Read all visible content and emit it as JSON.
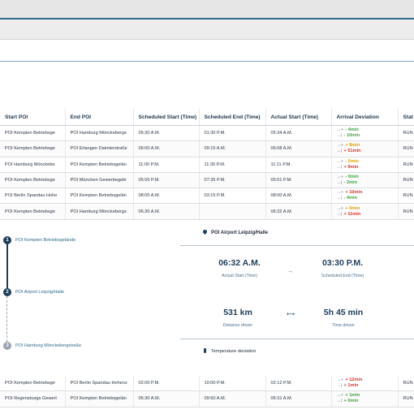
{
  "columns": [
    "Start POI",
    "End POI",
    "Scheduled Start (Time)",
    "Scheduled End (Time)",
    "Actual Start (Time)",
    "Arrival Deviation",
    "Stat"
  ],
  "rows": [
    {
      "start_poi": "POI Kempten Betriebsge",
      "end_poi": "POI Hamburg Mönckebergs",
      "sched_start": "05:30 A.M.",
      "sched_end": "01:30 P.M.",
      "actual_start": "05:34 A.M.",
      "dev1": "- 4min",
      "dev1_color": "early",
      "dev2": "- 10min",
      "dev2_color": "early",
      "status": "RUN"
    },
    {
      "start_poi": "POI Kempten Betriebsge",
      "end_poi": "POI Erlangen Daimlerstraße",
      "sched_start": "06:00 A.M.",
      "sched_end": "09:15 A.M.",
      "actual_start": "06:08 A.M.",
      "dev1": "+ 8min",
      "dev1_color": "warn",
      "dev2": "+ 51min",
      "dev2_color": "late",
      "status": "RUN"
    },
    {
      "start_poi": "POI Hamburg Mönckebe",
      "end_poi": "POI Kempten Betriebsgelän",
      "sched_start": "11:00 P.M.",
      "sched_end": "11:30 P.M.",
      "actual_start": "11:11 P.M.",
      "dev1": "- 5min",
      "dev1_color": "warn",
      "dev2": "+ 9min",
      "dev2_color": "late",
      "status": "RUN"
    },
    {
      "start_poi": "POI Kempten Betriebsge",
      "end_poi": "POI München Gewerbegebi",
      "sched_start": "05:00 P.M.",
      "sched_end": "07:35 P.M.",
      "actual_start": "05:01 P.M.",
      "dev1": "- 0min",
      "dev1_color": "early",
      "dev2": "- 2min",
      "dev2_color": "early",
      "status": "RUN"
    },
    {
      "start_poi": "POI Berlin Spandau Hohe",
      "end_poi": "POI Kempten Betriebsgelän",
      "sched_start": "08:00 A.M.",
      "sched_end": "03:15 P.M.",
      "actual_start": "08:00 A.M.",
      "dev1": "+ 10min",
      "dev1_color": "late",
      "dev2": "- 4min",
      "dev2_color": "early",
      "status": "RUN"
    },
    {
      "start_poi": "POI Kempten Betriebsge",
      "end_poi": "POI Hamburg Mönckebergs",
      "sched_start": "06:30 A.M.",
      "sched_end": "",
      "actual_start": "06:32 A.M.",
      "dev1": "+ 0min",
      "dev1_color": "warn",
      "dev2": "+ 11min",
      "dev2_color": "late",
      "status": "RUN"
    }
  ],
  "lower_rows": [
    {
      "start_poi": "POI Kempten Betriebsge",
      "end_poi": "POI Berlin Spandau Hohenz",
      "sched_start": "02:00 P.M.",
      "sched_end": "10:00 P.M.",
      "actual_start": "02:12 P.M.",
      "dev1": "+ 12min",
      "dev1_color": "late",
      "dev2": "+ 1min",
      "dev2_color": "late",
      "status": "RUN"
    },
    {
      "start_poi": "POI Regensburgs Gewerl",
      "end_poi": "POI Kempten Betriebsgelän",
      "sched_start": "06:30 A.M.",
      "sched_end": "09:50 A.M.",
      "actual_start": "06:31 A.M.",
      "dev1": "+ 1min",
      "dev1_color": "early",
      "dev2": "+ 0min",
      "dev2_color": "early",
      "status": "RUN"
    }
  ],
  "timeline": {
    "stops": [
      {
        "num": "1",
        "label": "POI Kempten Betriebsgelände"
      },
      {
        "num": "2",
        "label": "POI Airport Leipzig/Halle"
      },
      {
        "num": "3",
        "label": "POI Hamburg Mönckebergstraße"
      }
    ]
  },
  "detail": {
    "poi_title": "POI Airport Leipzig/Halle",
    "actual_start_value": "06:32 A.M.",
    "actual_start_label": "Actual Start (Time)",
    "arrow_icon": "→",
    "sched_end_value": "03:30 P.M.",
    "sched_end_label": "Scheduled End (Time)",
    "distance_value": "531 km",
    "distance_label": "Distance driven",
    "time_value": "5h 45 min",
    "time_label": "Time driven",
    "temperature_label": "Temperature deviation"
  },
  "colors": {
    "accent": "#2f6b8a",
    "early": "#3fa33f",
    "late": "#d9342b",
    "warn": "#e0a100"
  }
}
